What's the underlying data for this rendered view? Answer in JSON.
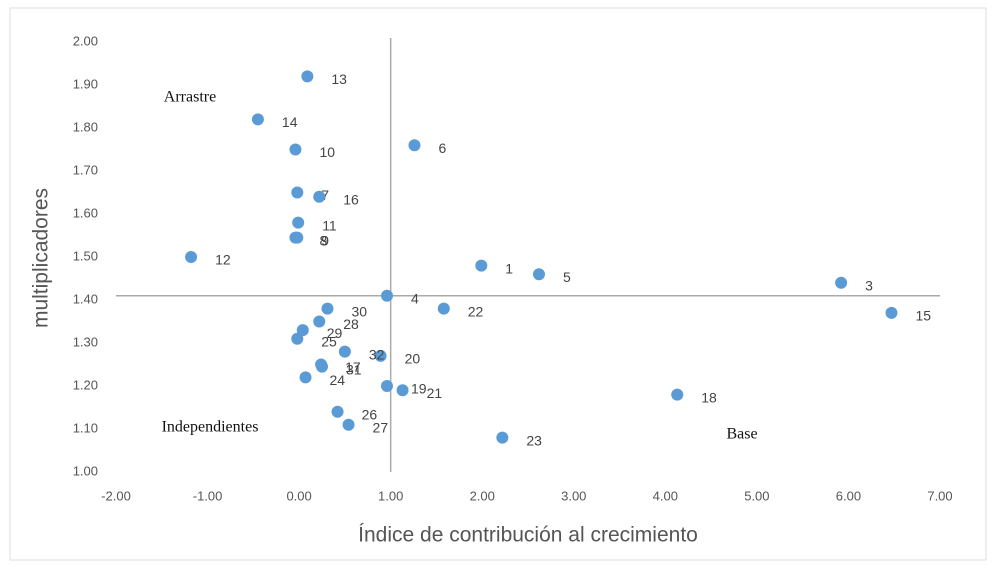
{
  "chart_data": {
    "type": "scatter",
    "x_label": "Índice de contribución al crecimiento",
    "y_label": "multiplicadores",
    "annotations": [
      "Arrastre",
      "Independientes",
      "Base"
    ],
    "point_labels": [
      "1",
      "3",
      "4",
      "5",
      "6",
      "7",
      "8",
      "9",
      "10",
      "11",
      "12",
      "13",
      "14",
      "15",
      "16",
      "17",
      "18",
      "19",
      "20",
      "21",
      "22",
      "23",
      "24",
      "25",
      "26",
      "27",
      "28",
      "29",
      "30",
      "31",
      "32"
    ],
    "x": [
      1.99,
      5.92,
      0.96,
      2.62,
      1.26,
      -0.02,
      -0.04,
      -0.02,
      -0.04,
      -0.01,
      -1.18,
      0.09,
      -0.45,
      6.47,
      0.22,
      0.24,
      4.13,
      0.96,
      0.89,
      1.13,
      1.58,
      2.22,
      0.07,
      -0.02,
      0.42,
      0.54,
      0.22,
      0.04,
      0.31,
      0.25,
      0.5
    ],
    "series": [
      {
        "color": "#5b9bd5",
        "values": [
          1.48,
          1.44,
          1.41,
          1.46,
          1.76,
          1.65,
          1.545,
          1.545,
          1.75,
          1.58,
          1.5,
          1.92,
          1.82,
          1.37,
          1.64,
          1.25,
          1.18,
          1.2,
          1.27,
          1.19,
          1.38,
          1.08,
          1.22,
          1.31,
          1.14,
          1.11,
          1.35,
          1.33,
          1.38,
          1.245,
          1.28
        ]
      }
    ],
    "reference_lines": {
      "x": 1,
      "y": 1.41
    },
    "xlim": [
      -2,
      7
    ],
    "ylim": [
      1,
      2
    ],
    "xticks": [
      {
        "value": -2,
        "label": "-2.00"
      },
      {
        "value": -1,
        "label": "-1.00"
      },
      {
        "value": 0,
        "label": "0.00"
      },
      {
        "value": 1,
        "label": "1.00"
      },
      {
        "value": 2,
        "label": "2.00"
      },
      {
        "value": 3,
        "label": "3.00"
      },
      {
        "value": 4,
        "label": "4.00"
      },
      {
        "value": 5,
        "label": "5.00"
      },
      {
        "value": 6,
        "label": "6.00"
      },
      {
        "value": 7,
        "label": "7.00"
      }
    ],
    "yticks": [
      {
        "value": 1,
        "label": "1.00"
      },
      {
        "value": 1.1,
        "label": "1.10"
      },
      {
        "value": 1.2,
        "label": "1.20"
      },
      {
        "value": 1.3,
        "label": "1.30"
      },
      {
        "value": 1.4,
        "label": "1.40"
      },
      {
        "value": 1.5,
        "label": "1.50"
      },
      {
        "value": 1.6,
        "label": "1.60"
      },
      {
        "value": 1.7,
        "label": "1.70"
      },
      {
        "value": 1.8,
        "label": "1.80"
      },
      {
        "value": 1.9,
        "label": "1.90"
      },
      {
        "value": 2,
        "label": "2.00"
      }
    ]
  }
}
